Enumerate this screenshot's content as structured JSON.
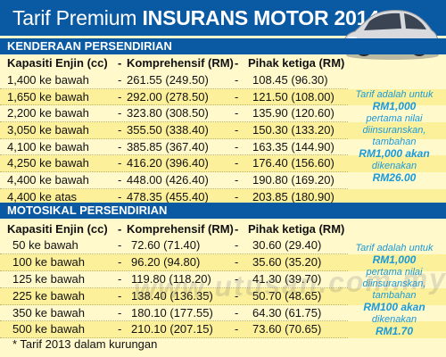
{
  "header": {
    "title_light": "Tarif Premium",
    "title_bold": "INSURANS MOTOR 2014"
  },
  "car_section": {
    "title": "KENDERAAN PERSENDIRIAN",
    "columns": [
      "Kapasiti Enjin (cc)",
      "-",
      "Komprehensif (RM)",
      "-",
      "Pihak ketiga (RM)"
    ],
    "rows": [
      {
        "capacity": "1,400 ke bawah",
        "comprehensive": "261.55 (249.50)",
        "third_party": "108.45 (96.30)"
      },
      {
        "capacity": "1,650 ke bawah",
        "comprehensive": "292.00 (278.50)",
        "third_party": "121.50 (108.00)"
      },
      {
        "capacity": "2,200 ke bawah",
        "comprehensive": "323.80 (308.50)",
        "third_party": "135.90 (120.60)"
      },
      {
        "capacity": "3,050 ke bawah",
        "comprehensive": "355.50 (338.40)",
        "third_party": "150.30 (133.20)"
      },
      {
        "capacity": "4,100 ke bawah",
        "comprehensive": "385.85 (367.40)",
        "third_party": "163.35 (144.90)"
      },
      {
        "capacity": "4,250 ke bawah",
        "comprehensive": "416.20 (396.40)",
        "third_party": "176.40 (156.60)"
      },
      {
        "capacity": "4,400 ke bawah",
        "comprehensive": "448.00 (426.40)",
        "third_party": "190.80 (169.20)"
      },
      {
        "capacity": "4,400 ke atas",
        "comprehensive": "478.35 (455.40)",
        "third_party": "203.85 (180.90)"
      }
    ],
    "note": {
      "line1": "Tarif adalah untuk",
      "line2": "RM1,000",
      "line3": "pertama nilai diinsuranskan, tambahan",
      "line4": "RM1,000 akan",
      "line5": "dikenakan",
      "line6": "RM26.00"
    }
  },
  "moto_section": {
    "title": "MOTOSIKAL PERSENDIRIAN",
    "columns": [
      "Kapasiti Enjin (cc)",
      "-",
      "Komprehensif (RM)",
      "-",
      "Pihak ketiga (RM)"
    ],
    "rows": [
      {
        "capacity": "50 ke bawah",
        "comprehensive": "72.60 (71.40)",
        "third_party": "30.60 (29.40)"
      },
      {
        "capacity": "100 ke bawah",
        "comprehensive": "96.20 (94.80)",
        "third_party": "35.60 (35.20)"
      },
      {
        "capacity": "125 ke bawah",
        "comprehensive": "119.80 (118.20)",
        "third_party": "41.30 (39.70)"
      },
      {
        "capacity": "225 ke bawah",
        "comprehensive": "138.40 (136.35)",
        "third_party": "50.70 (48.65)"
      },
      {
        "capacity": "350 ke bawah",
        "comprehensive": "180.10 (177.55)",
        "third_party": "64.30 (61.75)"
      },
      {
        "capacity": "500 ke bawah",
        "comprehensive": "210.10 (207.15)",
        "third_party": "73.60 (70.65)"
      }
    ],
    "note": {
      "line1": "Tarif adalah untuk",
      "line2": "RM1,000",
      "line3": "pertama nilai diinsuranskan, tambahan",
      "line4": "RM100 akan",
      "line5": "dikenakan",
      "line6": "RM1.70"
    }
  },
  "watermark": "www.utusan.com.my",
  "footnote": "* Tarif 2013 dalam kurungan",
  "colors": {
    "header_blue": "#0a5aa3",
    "background": "#fff9cc",
    "note_blue": "#1a9ad8"
  }
}
